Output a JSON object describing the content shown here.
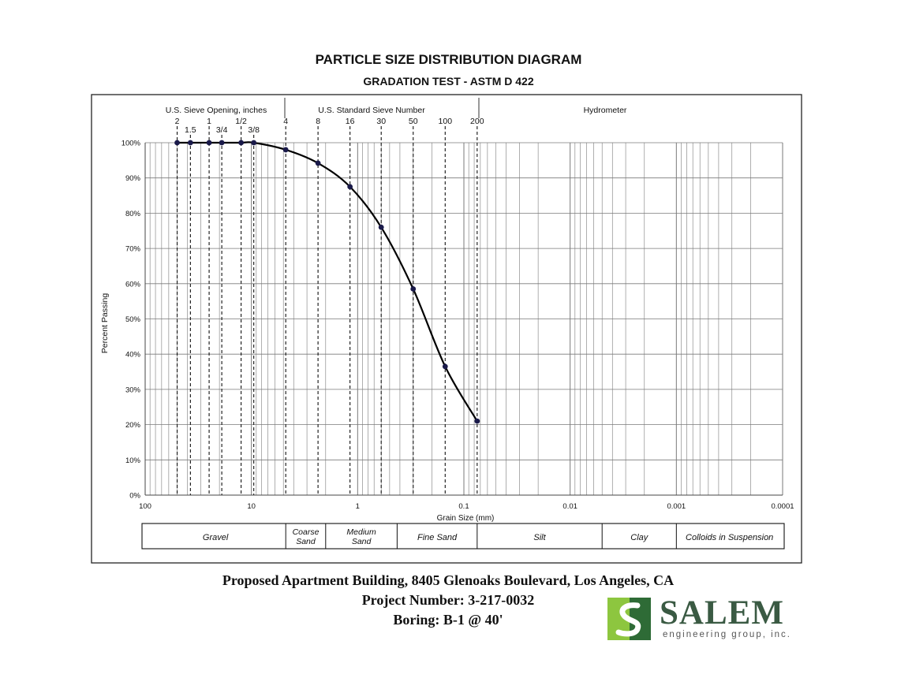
{
  "title": "PARTICLE SIZE DISTRIBUTION DIAGRAM",
  "subtitle": "GRADATION TEST - ASTM D 422",
  "chart_data": {
    "type": "line",
    "xscale": "log",
    "x_reversed": true,
    "xlim": [
      100,
      0.0001
    ],
    "ylim": [
      0,
      100
    ],
    "xlabel": "Grain Size (mm)",
    "ylabel": "Percent Passing",
    "x_ticks": [
      "100",
      "10",
      "1",
      "0.1",
      "0.01",
      "0.001",
      "0.0001"
    ],
    "y_ticks": [
      "0%",
      "10%",
      "20%",
      "30%",
      "40%",
      "50%",
      "60%",
      "70%",
      "80%",
      "90%",
      "100%"
    ],
    "series": [
      {
        "name": "Boring B-1 @ 40'",
        "x": [
          50,
          37.5,
          25,
          19,
          12.5,
          9.5,
          4.75,
          2.36,
          1.18,
          0.6,
          0.3,
          0.15,
          0.075
        ],
        "y": [
          100,
          100,
          100,
          100,
          100,
          100,
          98,
          94.2,
          87.5,
          76,
          58.5,
          36.5,
          21
        ]
      }
    ],
    "sieve_opening_header": "U.S. Sieve Opening, inches",
    "sieve_number_header": "U.S. Standard Sieve Number",
    "hydrometer_header": "Hydrometer",
    "sieve_openings": [
      {
        "label": "2",
        "size": 50,
        "row": 1
      },
      {
        "label": "1.5",
        "size": 37.5,
        "row": 2
      },
      {
        "label": "1",
        "size": 25,
        "row": 1
      },
      {
        "label": "3/4",
        "size": 19,
        "row": 2
      },
      {
        "label": "1/2",
        "size": 12.5,
        "row": 1
      },
      {
        "label": "3/8",
        "size": 9.5,
        "row": 2
      }
    ],
    "sieve_numbers": [
      {
        "label": "4",
        "size": 4.75
      },
      {
        "label": "8",
        "size": 2.36
      },
      {
        "label": "16",
        "size": 1.18
      },
      {
        "label": "30",
        "size": 0.6
      },
      {
        "label": "50",
        "size": 0.3
      },
      {
        "label": "100",
        "size": 0.15
      },
      {
        "label": "200",
        "size": 0.075
      }
    ],
    "soil_classes": [
      {
        "label": "Gravel",
        "from": 100,
        "to": 4.75
      },
      {
        "label": "Coarse\nSand",
        "from": 4.75,
        "to": 2.0
      },
      {
        "label": "Medium\nSand",
        "from": 2.0,
        "to": 0.425
      },
      {
        "label": "Fine Sand",
        "from": 0.425,
        "to": 0.075
      },
      {
        "label": "Silt",
        "from": 0.075,
        "to": 0.005
      },
      {
        "label": "Clay",
        "from": 0.005,
        "to": 0.001
      },
      {
        "label": "Colloids in Suspension",
        "from": 0.001,
        "to": 0.0001
      }
    ],
    "line_color": "#000000",
    "marker_color": "#1a1a4a",
    "grid_color": "#7a7a7a"
  },
  "footer": {
    "line1": "Proposed Apartment Building, 8405 Glenoaks Boulevard, Los Angeles, CA",
    "line2": "Project Number: 3-217-0032",
    "line3": "Boring: B-1 @ 40'"
  },
  "logo": {
    "name": "SALEM",
    "tagline": "engineering group, inc.",
    "color_light": "#8dc63f",
    "color_dark": "#2e6b36"
  }
}
